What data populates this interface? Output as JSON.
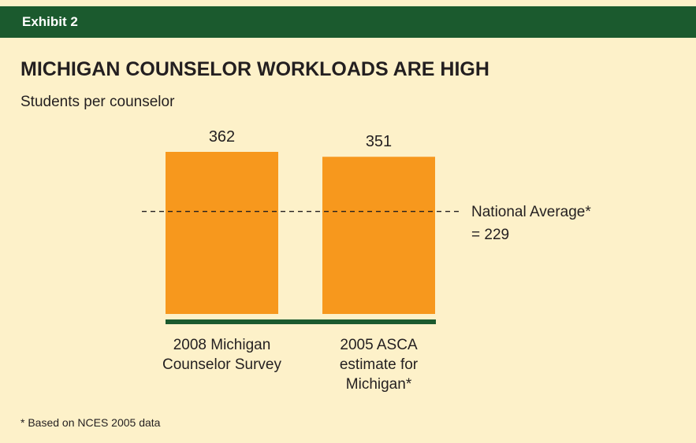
{
  "header": "Exhibit 2",
  "chart_data": {
    "type": "bar",
    "title": "MICHIGAN COUNSELOR WORKLOADS ARE HIGH",
    "subtitle": "Students per counselor",
    "categories": [
      "2008 Michigan Counselor Survey",
      "2005 ASCA estimate for Michigan*"
    ],
    "values": [
      362,
      351
    ],
    "color": "#f7981d",
    "baseline_color": "#1b5a2e",
    "reference_line": {
      "value": 229,
      "label": "National Average* = 229"
    },
    "footnote": "* Based on NCES 2005 data"
  }
}
